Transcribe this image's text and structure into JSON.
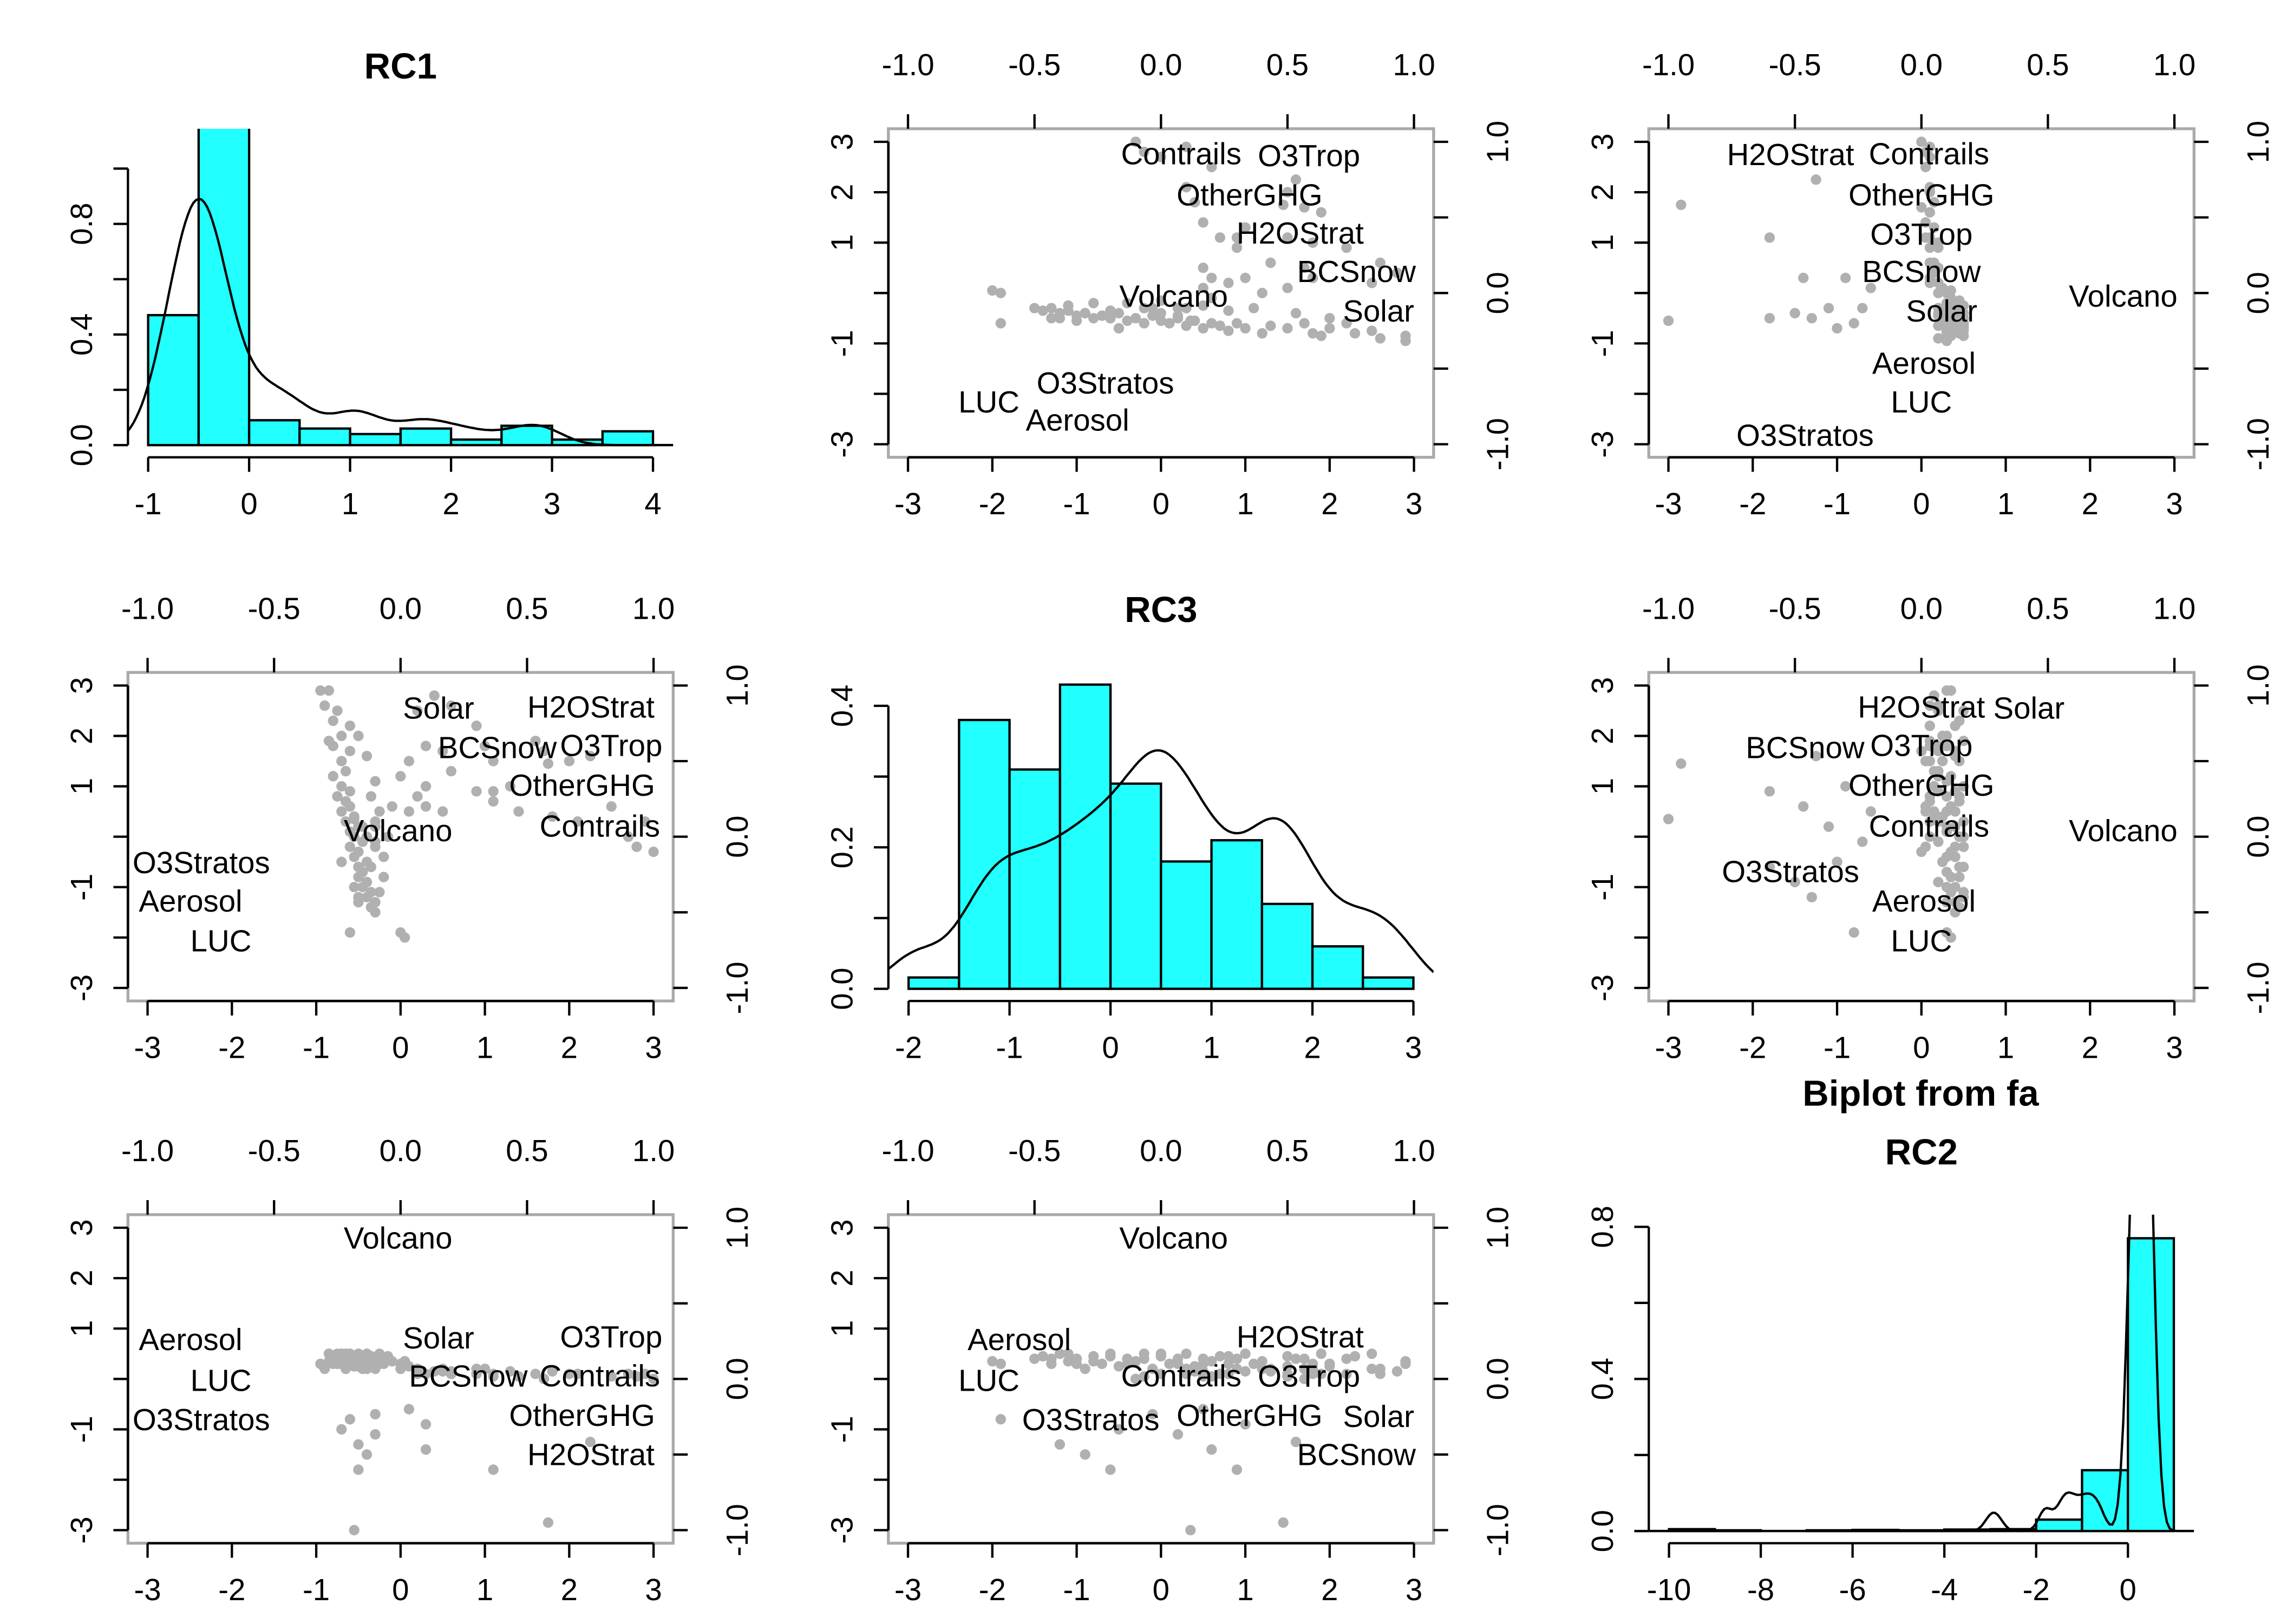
{
  "chart_data": {
    "type": "scatter",
    "title": "Biplot from fa",
    "variables": [
      "RC1",
      "RC3",
      "RC2"
    ],
    "grid": false,
    "point_color": "#b0b0b0",
    "bar_color": "#21ffff",
    "score_axis": {
      "lim": [
        -3,
        3
      ],
      "ticks": [
        -3,
        -2,
        -1,
        0,
        1,
        2,
        3
      ],
      "bottom_labels": [
        "-3",
        "-2",
        "-1",
        "0",
        "1",
        "2",
        "3"
      ],
      "left_labels": [
        "-3",
        "",
        "-1",
        "",
        "1",
        "2",
        "3"
      ]
    },
    "loading_axis": {
      "lim": [
        -1,
        1
      ],
      "ticks": [
        -1,
        -0.5,
        0,
        0.5,
        1
      ],
      "top_labels": [
        "-1.0",
        "-0.5",
        "0.0",
        "0.5",
        "1.0"
      ],
      "right_labels": [
        "-1.0",
        "",
        "0.0",
        "",
        "1.0"
      ]
    },
    "loadings": [
      {
        "name": "Contrails",
        "RC1": 0.96,
        "RC3": 0.08,
        "RC2": 0.03
      },
      {
        "name": "OtherGHG",
        "RC1": 0.89,
        "RC3": 0.35,
        "RC2": 0.0
      },
      {
        "name": "O3Trop",
        "RC1": 0.89,
        "RC3": 0.47,
        "RC2": 0.0
      },
      {
        "name": "H2OStrat",
        "RC1": 0.81,
        "RC3": 0.55,
        "RC2": 0.0
      },
      {
        "name": "BCSnow",
        "RC1": 0.44,
        "RC3": 0.83,
        "RC2": 0.0
      },
      {
        "name": "Solar",
        "RC1": 0.15,
        "RC3": 0.86,
        "RC2": 0.08
      },
      {
        "name": "Volcano",
        "RC1": -0.01,
        "RC3": 0.05,
        "RC2": 0.97
      },
      {
        "name": "LUC",
        "RC1": -0.71,
        "RC3": -0.68,
        "RC2": 0.0
      },
      {
        "name": "Aerosol",
        "RC1": -0.83,
        "RC3": -0.56,
        "RC2": 0.01
      },
      {
        "name": "O3Stratos",
        "RC1": -0.96,
        "RC3": -0.22,
        "RC2": 0.0
      }
    ],
    "scores_columns": [
      "RC1",
      "RC3",
      "RC2"
    ],
    "scores": [
      [
        -0.55,
        0.35,
        -3.0
      ],
      [
        1.75,
        1.45,
        -2.85
      ],
      [
        2.25,
        1.6,
        -1.25
      ],
      [
        1.1,
        0.9,
        -1.8
      ],
      [
        -0.5,
        -0.6,
        -1.8
      ],
      [
        -0.4,
        -0.9,
        -1.5
      ],
      [
        -0.3,
        0.2,
        -1.1
      ],
      [
        0.3,
        0.6,
        -1.4
      ],
      [
        0.3,
        1.0,
        -0.9
      ],
      [
        -0.5,
        -1.2,
        -1.3
      ],
      [
        -0.6,
        -1.9,
        -0.8
      ],
      [
        -0.3,
        -0.1,
        -0.7
      ],
      [
        0.1,
        0.5,
        -0.6
      ],
      [
        -0.7,
        -0.5,
        -1.0
      ],
      [
        -0.3,
        -1.5,
        0.4
      ],
      [
        -0.35,
        -1.4,
        0.45
      ],
      [
        -0.3,
        -1.3,
        0.3
      ],
      [
        -0.4,
        -1.2,
        0.5
      ],
      [
        -0.35,
        -1.1,
        0.35
      ],
      [
        -0.45,
        -1.0,
        0.4
      ],
      [
        -0.4,
        -0.9,
        0.2
      ],
      [
        -0.5,
        -0.8,
        0.45
      ],
      [
        -0.45,
        -0.7,
        0.3
      ],
      [
        -0.5,
        -0.6,
        0.5
      ],
      [
        -0.4,
        -0.5,
        0.25
      ],
      [
        -0.55,
        -0.4,
        0.4
      ],
      [
        -0.5,
        -0.3,
        0.35
      ],
      [
        -0.6,
        -0.2,
        0.5
      ],
      [
        -0.45,
        -0.1,
        0.2
      ],
      [
        -0.55,
        0.0,
        0.45
      ],
      [
        -0.6,
        0.1,
        0.3
      ],
      [
        -0.5,
        0.2,
        0.4
      ],
      [
        -0.65,
        0.3,
        0.5
      ],
      [
        -0.55,
        0.4,
        0.25
      ],
      [
        -0.7,
        0.5,
        0.4
      ],
      [
        -0.6,
        0.6,
        0.35
      ],
      [
        -0.65,
        0.7,
        0.45
      ],
      [
        -0.75,
        0.8,
        0.3
      ],
      [
        -0.6,
        0.9,
        0.4
      ],
      [
        -0.7,
        1.0,
        0.5
      ],
      [
        -0.8,
        1.2,
        0.35
      ],
      [
        -0.65,
        1.3,
        0.2
      ],
      [
        -0.7,
        1.5,
        0.45
      ],
      [
        -0.8,
        1.8,
        0.3
      ],
      [
        -0.6,
        2.2,
        0.4
      ],
      [
        -0.75,
        2.5,
        0.5
      ],
      [
        -0.85,
        2.9,
        0.35
      ],
      [
        -0.5,
        2.0,
        0.25
      ],
      [
        -0.4,
        1.6,
        0.4
      ],
      [
        -0.3,
        1.1,
        0.3
      ],
      [
        -0.35,
        0.8,
        0.45
      ],
      [
        -0.25,
        0.5,
        0.3
      ],
      [
        -0.3,
        -0.2,
        0.4
      ],
      [
        -0.2,
        -0.8,
        0.35
      ],
      [
        -0.25,
        -1.1,
        0.5
      ],
      [
        -0.35,
        -0.6,
        0.45
      ],
      [
        -0.45,
        0.2,
        0.3
      ],
      [
        -0.4,
        0.0,
        0.5
      ],
      [
        -0.3,
        0.3,
        0.2
      ],
      [
        -0.55,
        -1.0,
        0.3
      ],
      [
        -0.5,
        -1.3,
        0.4
      ],
      [
        -0.2,
        -0.4,
        0.3
      ],
      [
        -0.15,
        0.0,
        0.45
      ],
      [
        -0.1,
        0.6,
        0.35
      ],
      [
        0.0,
        -1.9,
        0.3
      ],
      [
        0.05,
        -2.0,
        0.35
      ],
      [
        -0.7,
        2.0,
        0.3
      ],
      [
        -0.8,
        2.3,
        0.45
      ],
      [
        -0.9,
        2.6,
        0.2
      ],
      [
        -0.95,
        2.9,
        0.3
      ],
      [
        -0.6,
        1.7,
        0.4
      ],
      [
        -0.85,
        1.9,
        0.5
      ],
      [
        0.3,
        1.8,
        0.1
      ],
      [
        0.5,
        1.7,
        0.2
      ],
      [
        0.6,
        1.3,
        0.15
      ],
      [
        0.9,
        2.2,
        0.1
      ],
      [
        1.0,
        1.8,
        0.2
      ],
      [
        1.1,
        1.5,
        0.05
      ],
      [
        1.3,
        1.0,
        0.15
      ],
      [
        1.6,
        1.9,
        0.1
      ],
      [
        1.7,
        1.7,
        0.0
      ],
      [
        2.0,
        1.5,
        0.1
      ],
      [
        0.9,
        0.9,
        0.2
      ],
      [
        1.1,
        0.7,
        0.1
      ],
      [
        1.4,
        0.5,
        0.05
      ],
      [
        1.8,
        0.4,
        0.15
      ],
      [
        2.1,
        0.3,
        0.1
      ],
      [
        2.5,
        0.6,
        0.05
      ],
      [
        2.7,
        0.0,
        0.1
      ],
      [
        3.0,
        -0.3,
        0.0
      ],
      [
        2.8,
        -0.2,
        0.05
      ],
      [
        2.9,
        0.3,
        0.1
      ],
      [
        0.2,
        2.5,
        0.2
      ],
      [
        0.4,
        2.8,
        0.15
      ],
      [
        0.6,
        2.6,
        0.1
      ],
      [
        0.0,
        1.2,
        0.2
      ],
      [
        0.2,
        0.8,
        0.1
      ],
      [
        0.5,
        0.5,
        0.15
      ],
      [
        0.1,
        1.5,
        0.25
      ]
    ],
    "histograms": [
      {
        "variable": "RC1",
        "xlim": [
          -1,
          4
        ],
        "ylim": [
          0,
          1.1
        ],
        "breaks": [
          -1,
          -0.5,
          0,
          0.5,
          1,
          1.5,
          2,
          2.5,
          3,
          3.5,
          4
        ],
        "density": [
          0.47,
          1.16,
          0.09,
          0.06,
          0.04,
          0.06,
          0.02,
          0.07,
          0.02,
          0.05
        ],
        "xticks": [
          -1,
          0,
          1,
          2,
          3,
          4
        ],
        "xlabels": [
          "-1",
          "0",
          "1",
          "2",
          "3",
          "4"
        ],
        "yticks": [
          0,
          0.2,
          0.4,
          0.6,
          0.8,
          1.0
        ],
        "ylabels": [
          "0.0",
          "",
          "0.4",
          "",
          "0.8",
          ""
        ]
      },
      {
        "variable": "RC3",
        "xlim": [
          -2,
          3
        ],
        "ylim": [
          0,
          0.43
        ],
        "breaks": [
          -2,
          -1.5,
          -1,
          -0.5,
          0,
          0.5,
          1,
          1.5,
          2,
          2.5,
          3
        ],
        "density": [
          0.016,
          0.38,
          0.31,
          0.43,
          0.29,
          0.18,
          0.21,
          0.12,
          0.06,
          0.016
        ],
        "xticks": [
          -2,
          -1,
          0,
          1,
          2,
          3
        ],
        "xlabels": [
          "-2",
          "-1",
          "0",
          "1",
          "2",
          "3"
        ],
        "yticks": [
          0,
          0.1,
          0.2,
          0.3,
          0.4
        ],
        "ylabels": [
          "0.0",
          "",
          "0.2",
          "",
          "0.4"
        ]
      },
      {
        "variable": "RC2",
        "xlim": [
          -10,
          1
        ],
        "ylim": [
          0,
          0.8
        ],
        "breaks": [
          -10,
          -9,
          -8,
          -7,
          -6,
          -5,
          -4,
          -3,
          -2,
          -1,
          0,
          1
        ],
        "density": [
          0.005,
          0.002,
          0.0,
          0.002,
          0.003,
          0.002,
          0.004,
          0.005,
          0.03,
          0.16,
          0.77
        ],
        "xticks": [
          -10,
          -8,
          -6,
          -4,
          -2,
          0
        ],
        "xlabels": [
          "-10",
          "-8",
          "-6",
          "-4",
          "-2",
          "0"
        ],
        "yticks": [
          0,
          0.2,
          0.4,
          0.6,
          0.8
        ],
        "ylabels": [
          "0.0",
          "",
          "0.4",
          "",
          "0.8"
        ]
      }
    ]
  }
}
